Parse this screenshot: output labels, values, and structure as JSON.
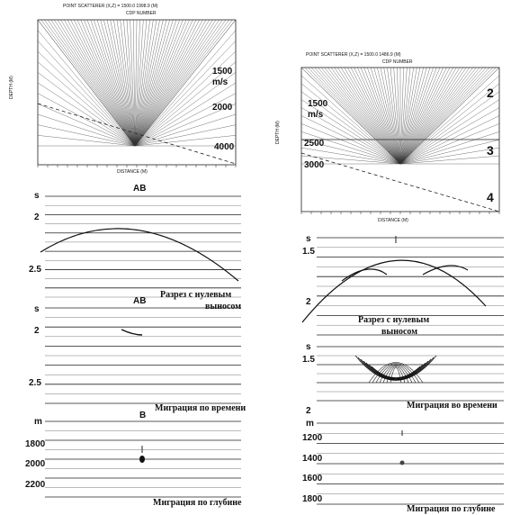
{
  "left": {
    "model": {
      "header": "POINT SCATTERER (X,Z) = 1500.0 1998.9 (M)",
      "top_label": "CDP NUMBER",
      "y_axis": "DEPTH (M)",
      "x_axis": "DISTANCE (M)",
      "velocity_1": "1500",
      "velocity_unit": "m/s",
      "velocity_2": "2000",
      "velocity_3": "4000"
    },
    "zero_offset": {
      "marker": "AB",
      "unit": "s",
      "ticks": [
        "2",
        "2.5"
      ],
      "caption": [
        "Разрез с нулевым",
        "выносом"
      ]
    },
    "time_migration": {
      "marker": "AB",
      "unit": "s",
      "ticks": [
        "2",
        "2.5"
      ],
      "caption": "Миграция по времени"
    },
    "depth_migration": {
      "marker": "B",
      "unit": "m",
      "ticks": [
        "1800",
        "2000",
        "2200"
      ],
      "caption": "Миграция по глубине"
    }
  },
  "right": {
    "model": {
      "header": "POINT SCATTERER (X,Z) = 1500.0 1486.9 (M)",
      "top_label": "CDP NUMBER",
      "y_axis": "DEPTH (M)",
      "x_axis": "DISTANCE (M)",
      "velocity_1": "1500",
      "velocity_unit": "m/s",
      "velocity_2": "2500",
      "velocity_3": "3000",
      "layer_labels": [
        "2",
        "3",
        "4"
      ]
    },
    "zero_offset": {
      "unit": "s",
      "ticks": [
        "1.5",
        "2"
      ],
      "caption": [
        "Разрез с нулевым",
        "выносом"
      ]
    },
    "time_migration": {
      "unit": "s",
      "ticks": [
        "1.5",
        "2"
      ],
      "caption": "Миграция во времени"
    },
    "depth_migration": {
      "unit": "m",
      "ticks": [
        "1200",
        "1400",
        "1600",
        "1800"
      ],
      "caption": "Миграция по глубине"
    }
  }
}
